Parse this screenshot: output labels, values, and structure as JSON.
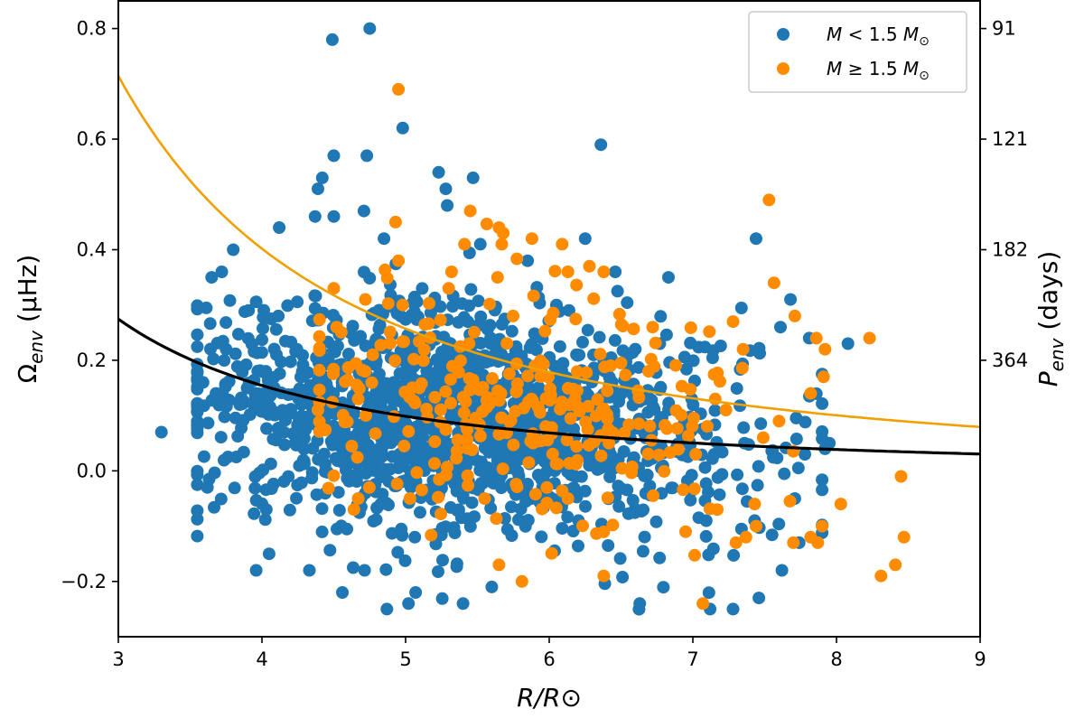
{
  "chart_data": {
    "type": "scatter",
    "xlabel": "R/R⊙",
    "ylabel": "Ω_env (μHz)",
    "ylabel_right": "P_env (days)",
    "xlim": [
      3,
      9
    ],
    "ylim": [
      -0.3,
      0.85
    ],
    "x_ticks": [
      3,
      4,
      5,
      6,
      7,
      8,
      9
    ],
    "y_ticks": [
      -0.2,
      0.0,
      0.2,
      0.4,
      0.6,
      0.8
    ],
    "y_tick_labels": [
      "−0.2",
      "0.0",
      "0.2",
      "0.4",
      "0.6",
      "0.8"
    ],
    "right_ticks": [
      {
        "label": "91",
        "omega": 0.8
      },
      {
        "label": "121",
        "omega": 0.6
      },
      {
        "label": "182",
        "omega": 0.4
      },
      {
        "label": "364",
        "omega": 0.2
      }
    ],
    "legend_position": "top-right",
    "colors": {
      "low_mass": "#1f77b4",
      "high_mass": "#ff8c00",
      "fit_low": "#000000",
      "fit_high": "#f0a000"
    },
    "series": [
      {
        "name": "M < 1.5 M⊙",
        "color": "#1f77b4",
        "cluster": {
          "count": 1500,
          "x_center": 5.4,
          "x_spread": 0.95,
          "x_min": 3.55,
          "x_max": 7.9,
          "y_center": 0.09,
          "y_spread": 0.1,
          "seed": 7
        },
        "points": [
          [
            4.49,
            0.78
          ],
          [
            4.75,
            0.8
          ],
          [
            4.98,
            0.62
          ],
          [
            6.36,
            0.59
          ],
          [
            4.5,
            0.57
          ],
          [
            4.73,
            0.57
          ],
          [
            5.23,
            0.54
          ],
          [
            4.42,
            0.53
          ],
          [
            4.39,
            0.51
          ],
          [
            5.47,
            0.53
          ],
          [
            5.28,
            0.51
          ],
          [
            5.29,
            0.48
          ],
          [
            4.71,
            0.47
          ],
          [
            4.37,
            0.46
          ],
          [
            4.5,
            0.46
          ],
          [
            7.44,
            0.42
          ],
          [
            3.8,
            0.4
          ],
          [
            4.12,
            0.44
          ],
          [
            6.25,
            0.42
          ],
          [
            3.3,
            0.07
          ],
          [
            3.55,
            0.18
          ],
          [
            3.62,
            -0.03
          ],
          [
            3.65,
            0.35
          ],
          [
            3.72,
            0.36
          ],
          [
            4.03,
            -0.07
          ],
          [
            3.96,
            -0.18
          ],
          [
            4.05,
            -0.15
          ],
          [
            4.33,
            -0.18
          ],
          [
            4.56,
            -0.22
          ],
          [
            4.87,
            -0.25
          ],
          [
            5.07,
            -0.22
          ],
          [
            5.02,
            -0.24
          ],
          [
            5.4,
            -0.24
          ],
          [
            5.6,
            -0.21
          ],
          [
            6.63,
            -0.24
          ],
          [
            7.12,
            -0.25
          ],
          [
            7.28,
            -0.25
          ],
          [
            7.46,
            -0.23
          ],
          [
            7.92,
            0.04
          ],
          [
            7.95,
            0.05
          ],
          [
            8.08,
            0.23
          ],
          [
            7.68,
            0.31
          ],
          [
            7.81,
            0.24
          ],
          [
            7.61,
            0.26
          ],
          [
            6.77,
            0.23
          ],
          [
            7.36,
            0.05
          ],
          [
            7.78,
            0.03
          ],
          [
            7.74,
            -0.13
          ],
          [
            7.71,
            -0.05
          ],
          [
            7.43,
            -0.09
          ],
          [
            7.62,
            -0.18
          ],
          [
            3.59,
            0.16
          ],
          [
            3.68,
            0.14
          ],
          [
            3.75,
            0.22
          ],
          [
            6.83,
            0.35
          ],
          [
            6.46,
            0.36
          ],
          [
            5.85,
            0.38
          ],
          [
            5.52,
            0.41
          ],
          [
            6.05,
            0.3
          ],
          [
            4.85,
            0.42
          ]
        ]
      },
      {
        "name": "M ≥ 1.5 M⊙",
        "color": "#ff8c00",
        "cluster": {
          "count": 280,
          "x_center": 5.8,
          "x_spread": 0.8,
          "x_min": 4.4,
          "x_max": 7.7,
          "y_center": 0.11,
          "y_spread": 0.1,
          "seed": 13
        },
        "points": [
          [
            4.95,
            0.69
          ],
          [
            7.53,
            0.49
          ],
          [
            5.45,
            0.47
          ],
          [
            4.93,
            0.45
          ],
          [
            5.65,
            0.44
          ],
          [
            5.68,
            0.43
          ],
          [
            5.88,
            0.42
          ],
          [
            5.67,
            0.41
          ],
          [
            5.41,
            0.41
          ],
          [
            6.09,
            0.41
          ],
          [
            4.95,
            0.38
          ],
          [
            5.32,
            0.36
          ],
          [
            5.64,
            0.35
          ],
          [
            6.13,
            0.36
          ],
          [
            6.28,
            0.37
          ],
          [
            6.38,
            0.36
          ],
          [
            5.3,
            0.33
          ],
          [
            4.98,
            0.3
          ],
          [
            4.72,
            0.31
          ],
          [
            4.5,
            0.33
          ],
          [
            4.52,
            0.26
          ],
          [
            8.23,
            0.24
          ],
          [
            7.86,
            0.24
          ],
          [
            7.71,
            0.28
          ],
          [
            7.92,
            0.22
          ],
          [
            7.91,
            0.17
          ],
          [
            7.82,
            0.14
          ],
          [
            7.28,
            0.27
          ],
          [
            7.35,
            0.22
          ],
          [
            7.6,
            0.09
          ],
          [
            7.49,
            0.06
          ],
          [
            8.45,
            -0.01
          ],
          [
            8.47,
            -0.12
          ],
          [
            8.41,
            -0.17
          ],
          [
            8.31,
            -0.19
          ],
          [
            8.03,
            -0.06
          ],
          [
            7.9,
            -0.1
          ],
          [
            7.82,
            -0.12
          ],
          [
            7.7,
            -0.13
          ],
          [
            7.87,
            -0.13
          ],
          [
            7.17,
            -0.07
          ],
          [
            7.44,
            -0.1
          ],
          [
            7.37,
            -0.12
          ],
          [
            7.3,
            -0.13
          ],
          [
            7.43,
            -0.06
          ],
          [
            7.07,
            -0.24
          ],
          [
            6.95,
            -0.11
          ],
          [
            6.38,
            -0.19
          ],
          [
            5.81,
            -0.2
          ],
          [
            5.65,
            -0.17
          ],
          [
            4.67,
            -0.05
          ],
          [
            4.64,
            -0.07
          ],
          [
            5.03,
            -0.05
          ],
          [
            5.55,
            -0.05
          ],
          [
            6.13,
            -0.05
          ],
          [
            4.39,
            0.11
          ],
          [
            4.67,
            0.13
          ],
          [
            7.02,
            0.03
          ],
          [
            7.23,
            0.11
          ],
          [
            6.72,
            0.26
          ]
        ]
      }
    ],
    "lines": [
      {
        "name": "fit_high",
        "color": "#f0a000",
        "a": 6.43,
        "b": -2,
        "c": 0.0
      },
      {
        "name": "fit_low",
        "color": "#000000",
        "a": 2.47,
        "b": -2,
        "c": 0.0
      }
    ]
  }
}
